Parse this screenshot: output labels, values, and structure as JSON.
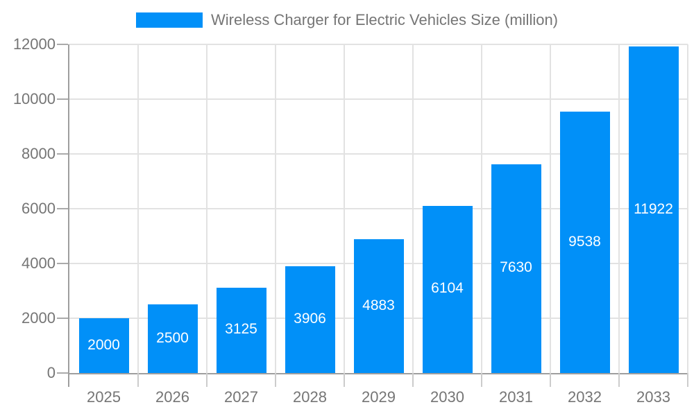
{
  "legend": {
    "label": "Wireless Charger for Electric Vehicles Size (million)"
  },
  "chart_data": {
    "type": "bar",
    "title": "Wireless Charger for Electric Vehicles Size (million)",
    "categories": [
      "2025",
      "2026",
      "2027",
      "2028",
      "2029",
      "2030",
      "2031",
      "2032",
      "2033"
    ],
    "values": [
      2000,
      2500,
      3125,
      3906,
      4883,
      6104,
      7630,
      9538,
      11922
    ],
    "series": [
      {
        "name": "Wireless Charger for Electric Vehicles Size (million)",
        "values": [
          2000,
          2500,
          3125,
          3906,
          4883,
          6104,
          7630,
          9538,
          11922
        ]
      }
    ],
    "xlabel": "",
    "ylabel": "",
    "ylim": [
      0,
      12000
    ],
    "yticks": [
      0,
      2000,
      4000,
      6000,
      8000,
      10000,
      12000
    ],
    "grid": true,
    "legend_position": "top",
    "value_labels": "inside-center",
    "colors": {
      "bar": "#0190f8",
      "value_text": "#ffffff",
      "tick_text": "#757575",
      "grid_line": "#e2e2e2",
      "axis_line": "#9e9e9e"
    }
  }
}
